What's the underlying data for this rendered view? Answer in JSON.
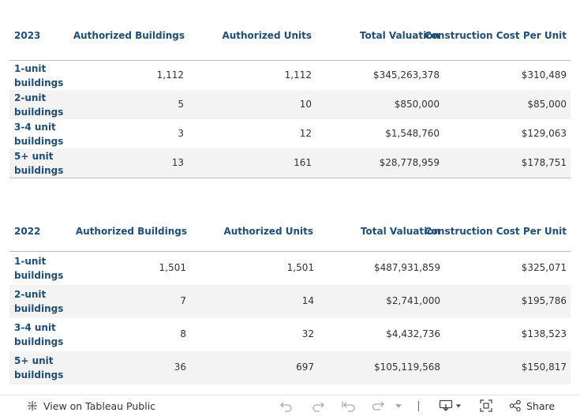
{
  "tables": [
    {
      "year": "2023",
      "columns": [
        "Authorized Buildings",
        "Authorized Units",
        "Total Valuation",
        "Construction Cost Per Unit"
      ],
      "rows": [
        {
          "label": "1-unit\nbuildings",
          "buildings": "1,112",
          "units": "1,112",
          "valuation": "$345,263,378",
          "cost_per_unit": "$310,489"
        },
        {
          "label": "2-unit\nbuildings",
          "buildings": "5",
          "units": "10",
          "valuation": "$850,000",
          "cost_per_unit": "$85,000"
        },
        {
          "label": "3-4 unit\nbuildings",
          "buildings": "3",
          "units": "12",
          "valuation": "$1,548,760",
          "cost_per_unit": "$129,063"
        },
        {
          "label": "5+ unit\nbuildings",
          "buildings": "13",
          "units": "161",
          "valuation": "$28,778,959",
          "cost_per_unit": "$178,751"
        }
      ]
    },
    {
      "year": "2022",
      "columns": [
        "Authorized Buildings",
        "Authorized Units",
        "Total Valuation",
        "Construction Cost Per Unit"
      ],
      "rows": [
        {
          "label": "1-unit\nbuildings",
          "buildings": "1,501",
          "units": "1,501",
          "valuation": "$487,931,859",
          "cost_per_unit": "$325,071"
        },
        {
          "label": "2-unit\nbuildings",
          "buildings": "7",
          "units": "14",
          "valuation": "$2,741,000",
          "cost_per_unit": "$195,786"
        },
        {
          "label": "3-4 unit\nbuildings",
          "buildings": "8",
          "units": "32",
          "valuation": "$4,432,736",
          "cost_per_unit": "$138,523"
        },
        {
          "label": "5+ unit\nbuildings",
          "buildings": "36",
          "units": "697",
          "valuation": "$105,119,568",
          "cost_per_unit": "$150,817"
        }
      ]
    }
  ],
  "toolbar": {
    "view_on_label": "View on Tableau Public",
    "share_label": "Share",
    "icons": [
      "tableau-logo-icon",
      "undo-icon",
      "redo-icon",
      "revert-icon",
      "refresh-icon",
      "dropdown-caret-icon",
      "download-icon",
      "fullscreen-icon",
      "share-icon"
    ]
  },
  "colors": {
    "header_text": "#1f4e79",
    "row_alt_bg": "#f3f3f3",
    "separator": "#bfbfbf",
    "body_text": "#333333"
  }
}
